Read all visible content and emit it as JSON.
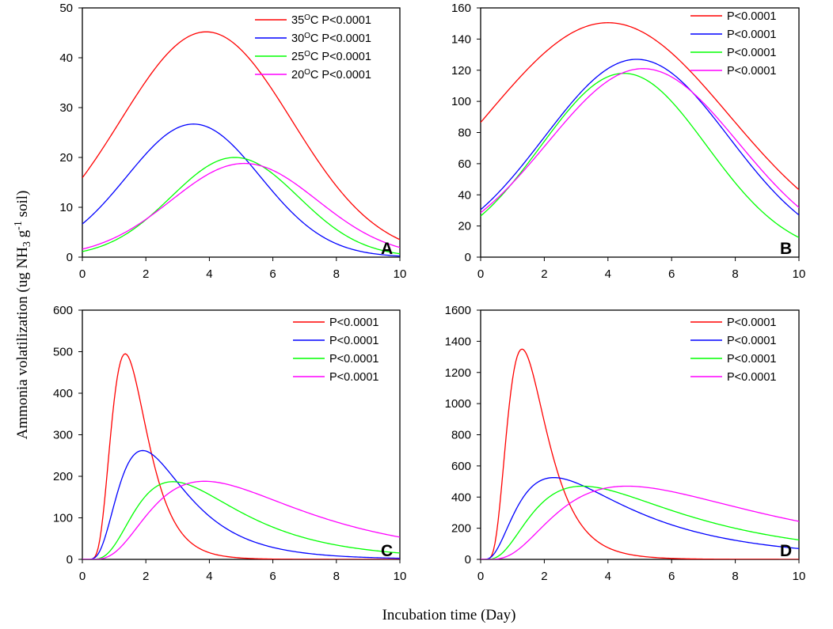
{
  "figure": {
    "ylabel_main": "Ammonia volatilization (ug NH",
    "ylabel_sub": "3",
    "ylabel_g": " g",
    "ylabel_sup": "-1",
    "ylabel_tail": " soil)",
    "xlabel": "Incubation time (Day)"
  },
  "colors": {
    "red": "#ff0000",
    "blue": "#0000ff",
    "green": "#00ff00",
    "magenta": "#ff00ff"
  },
  "chart_data": [
    {
      "type": "line",
      "panel": "A",
      "xlim": [
        0,
        10
      ],
      "ylim": [
        0,
        50
      ],
      "xticks": [
        "0",
        "2",
        "4",
        "6",
        "8",
        "10"
      ],
      "yticks": [
        "0",
        "10",
        "20",
        "30",
        "40",
        "50"
      ],
      "series": [
        {
          "name": "35°C P<0.0001",
          "temp": "35",
          "stat": "P<0.0001",
          "color": "#ff0000",
          "peak": 45.2,
          "tpeak": 3.9,
          "width": 2.7
        },
        {
          "name": "30°C P<0.0001",
          "temp": "30",
          "stat": "P<0.0001",
          "color": "#0000ff",
          "peak": 26.7,
          "tpeak": 3.5,
          "width": 2.1
        },
        {
          "name": "25°C P<0.0001",
          "temp": "25",
          "stat": "P<0.0001",
          "color": "#00ff00",
          "peak": 20.0,
          "tpeak": 4.8,
          "width": 2.0
        },
        {
          "name": "20°C P<0.0001",
          "temp": "20",
          "stat": "P<0.0001",
          "color": "#ff00ff",
          "peak": 18.8,
          "tpeak": 5.1,
          "width": 2.3
        }
      ]
    },
    {
      "type": "line",
      "panel": "B",
      "xlim": [
        0,
        10
      ],
      "ylim": [
        0,
        160
      ],
      "xticks": [
        "0",
        "2",
        "4",
        "6",
        "8",
        "10"
      ],
      "yticks": [
        "0",
        "20",
        "40",
        "60",
        "80",
        "100",
        "120",
        "140",
        "160"
      ],
      "series": [
        {
          "name": "P<0.0001",
          "color": "#ff0000",
          "peak": 150.5,
          "tpeak": 4.0,
          "width": 3.8
        },
        {
          "name": "P<0.0001",
          "color": "#0000ff",
          "peak": 127.0,
          "tpeak": 4.9,
          "width": 2.9
        },
        {
          "name": "P<0.0001",
          "color": "#00ff00",
          "peak": 118.0,
          "tpeak": 4.5,
          "width": 2.6
        },
        {
          "name": "P<0.0001",
          "color": "#ff00ff",
          "peak": 121.0,
          "tpeak": 5.1,
          "width": 3.0
        }
      ]
    },
    {
      "type": "line",
      "panel": "C",
      "xlim": [
        0,
        10
      ],
      "ylim": [
        0,
        600
      ],
      "xticks": [
        "0",
        "2",
        "4",
        "6",
        "8",
        "10"
      ],
      "yticks": [
        "0",
        "100",
        "200",
        "300",
        "400",
        "500",
        "600"
      ],
      "series": [
        {
          "name": "P<0.0001",
          "color": "#ff0000",
          "peak": 495,
          "tpeak": 1.35,
          "sigma": 0.35,
          "floor": 0
        },
        {
          "name": "P<0.0001",
          "color": "#0000ff",
          "peak": 262,
          "tpeak": 1.9,
          "sigma": 0.65,
          "floor": 0
        },
        {
          "name": "P<0.0001",
          "color": "#00ff00",
          "peak": 187,
          "tpeak": 2.85,
          "sigma": 1.0,
          "floor": 0
        },
        {
          "name": "P<0.0001",
          "color": "#ff00ff",
          "peak": 188,
          "tpeak": 3.85,
          "sigma": 1.45,
          "floor": 0
        }
      ]
    },
    {
      "type": "line",
      "panel": "D",
      "xlim": [
        0,
        10
      ],
      "ylim": [
        0,
        1600
      ],
      "xticks": [
        "0",
        "2",
        "4",
        "6",
        "8",
        "10"
      ],
      "yticks": [
        "0",
        "200",
        "400",
        "600",
        "800",
        "1000",
        "1200",
        "1400",
        "1600"
      ],
      "series": [
        {
          "name": "P<0.0001",
          "color": "#ff0000",
          "peak": 1350,
          "tpeak": 1.3,
          "sigma": 0.38,
          "floor": 0
        },
        {
          "name": "P<0.0001",
          "color": "#0000ff",
          "peak": 525,
          "tpeak": 2.3,
          "sigma": 1.05,
          "floor": 0
        },
        {
          "name": "P<0.0001",
          "color": "#00ff00",
          "peak": 470,
          "tpeak": 3.2,
          "sigma": 1.4,
          "floor": 0
        },
        {
          "name": "P<0.0001",
          "color": "#ff00ff",
          "peak": 470,
          "tpeak": 4.6,
          "sigma": 1.95,
          "floor": 0
        }
      ]
    }
  ]
}
